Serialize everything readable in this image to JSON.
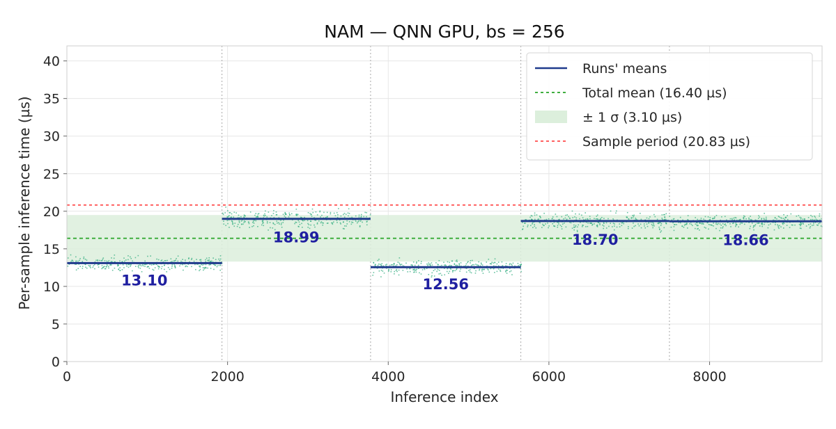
{
  "chart_data": {
    "type": "scatter",
    "title": "NAM — QNN GPU, bs = 256",
    "xlabel": "Inference index",
    "ylabel": "Per-sample inference time (µs)",
    "xlim": [
      0,
      9400
    ],
    "ylim": [
      0,
      42
    ],
    "xticks": [
      0,
      2000,
      4000,
      6000,
      8000
    ],
    "yticks": [
      0,
      5,
      10,
      15,
      20,
      25,
      30,
      35,
      40
    ],
    "grid": true,
    "legend_position": "top-right",
    "colors": {
      "points": "#2aaa7a",
      "runs_mean": "#1f3a8c",
      "total_mean": "#3fae3f",
      "band": "#dcefdc",
      "sample_period": "#ff6060"
    },
    "runs": [
      {
        "x_start": 0,
        "x_end": 1930,
        "mean": 13.1,
        "label": "13.10",
        "spread": 1.0
      },
      {
        "x_start": 1930,
        "x_end": 3780,
        "mean": 18.99,
        "label": "18.99",
        "spread": 1.3
      },
      {
        "x_start": 3780,
        "x_end": 5650,
        "mean": 12.56,
        "label": "12.56",
        "spread": 1.1
      },
      {
        "x_start": 5650,
        "x_end": 7500,
        "mean": 18.7,
        "label": "18.70",
        "spread": 1.2
      },
      {
        "x_start": 7500,
        "x_end": 9400,
        "mean": 18.66,
        "label": "18.66",
        "spread": 1.0
      }
    ],
    "total_mean": 16.4,
    "sigma": 3.1,
    "sample_period": 20.83,
    "legend": [
      {
        "key": "runs_mean",
        "label": "Runs' means"
      },
      {
        "key": "total_mean",
        "label": "Total mean (16.40 µs)"
      },
      {
        "key": "band",
        "label": "± 1 σ (3.10 µs)"
      },
      {
        "key": "sample_period",
        "label": "Sample period (20.83 µs)"
      }
    ]
  }
}
